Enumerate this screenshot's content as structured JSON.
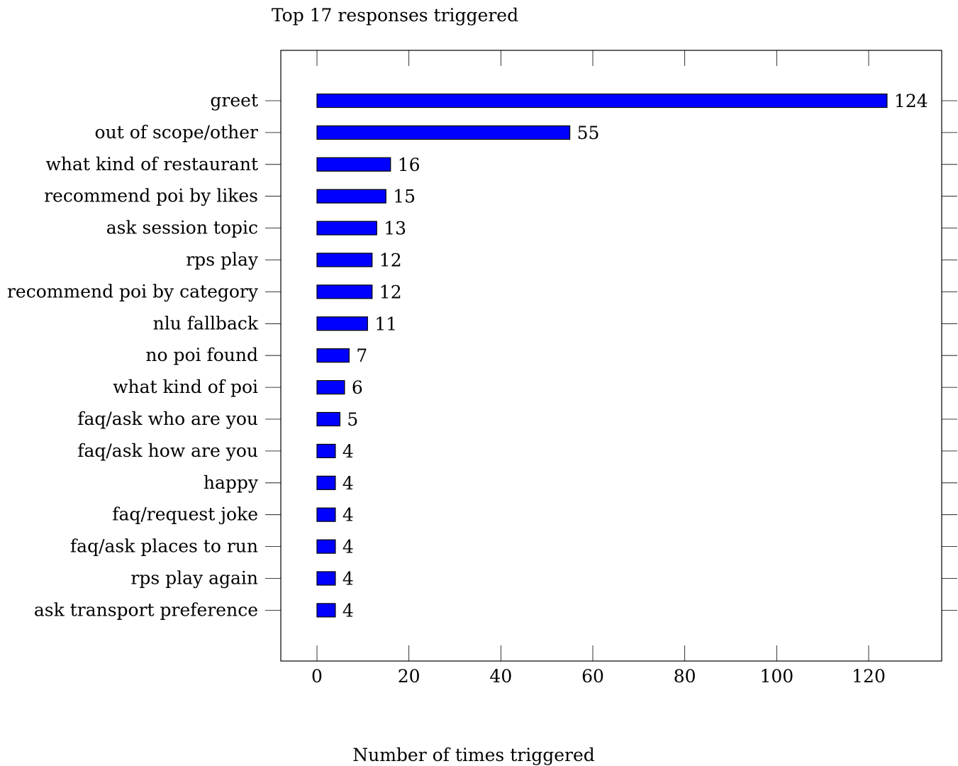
{
  "chart_data": {
    "type": "bar",
    "orientation": "horizontal",
    "title": "Top 17 responses triggered",
    "xlabel": "Number of times triggered",
    "ylabel": "",
    "categories": [
      "greet",
      "out of scope/other",
      "what kind of restaurant",
      "recommend poi by likes",
      "ask session topic",
      "rps play",
      "recommend poi by category",
      "nlu fallback",
      "no poi found",
      "what kind of poi",
      "faq/ask who are you",
      "faq/ask how are you",
      "happy",
      "faq/request joke",
      "faq/ask places to run",
      "rps play again",
      "ask transport preference"
    ],
    "values": [
      124,
      55,
      16,
      15,
      13,
      12,
      12,
      11,
      7,
      6,
      5,
      4,
      4,
      4,
      4,
      4,
      4
    ],
    "xlim": [
      -8,
      136
    ],
    "xticks": [
      0,
      20,
      40,
      60,
      80,
      100,
      120
    ],
    "grid": false,
    "legend": "none",
    "bar_color": "#0000ff",
    "bar_edge_color": "#000000",
    "show_data_labels": true
  }
}
